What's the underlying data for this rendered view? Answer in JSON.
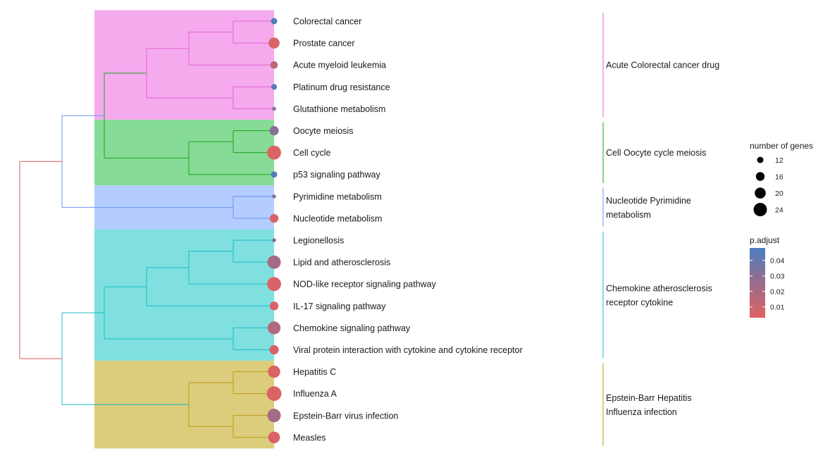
{
  "chart_data": {
    "type": "treeplot",
    "terms": [
      {
        "name": "Colorectal cancer",
        "count": 12,
        "p_adjust": 0.045
      },
      {
        "name": "Prostate cancer",
        "count": 20,
        "p_adjust": 0.005
      },
      {
        "name": "Acute myeloid leukemia",
        "count": 14,
        "p_adjust": 0.015
      },
      {
        "name": "Platinum drug resistance",
        "count": 11,
        "p_adjust": 0.045
      },
      {
        "name": "Glutathione metabolism",
        "count": 8,
        "p_adjust": 0.033
      },
      {
        "name": "Oocyte meiosis",
        "count": 17,
        "p_adjust": 0.03
      },
      {
        "name": "Cell cycle",
        "count": 25,
        "p_adjust": 0.004
      },
      {
        "name": "p53 signaling pathway",
        "count": 12,
        "p_adjust": 0.045
      },
      {
        "name": "Pyrimidine metabolism",
        "count": 8,
        "p_adjust": 0.033
      },
      {
        "name": "Nucleotide metabolism",
        "count": 16,
        "p_adjust": 0.006
      },
      {
        "name": "Legionellosis",
        "count": 8,
        "p_adjust": 0.033
      },
      {
        "name": "Lipid and atherosclerosis",
        "count": 24,
        "p_adjust": 0.022
      },
      {
        "name": "NOD-like receptor signaling pathway",
        "count": 25,
        "p_adjust": 0.006
      },
      {
        "name": "IL-17 signaling pathway",
        "count": 16,
        "p_adjust": 0.006
      },
      {
        "name": "Chemokine signaling pathway",
        "count": 23,
        "p_adjust": 0.018
      },
      {
        "name": "Viral protein interaction with cytokine and cytokine receptor",
        "count": 17,
        "p_adjust": 0.006
      },
      {
        "name": "Hepatitis C",
        "count": 22,
        "p_adjust": 0.004
      },
      {
        "name": "Influenza A",
        "count": 26,
        "p_adjust": 0.004
      },
      {
        "name": "Epstein-Barr virus infection",
        "count": 24,
        "p_adjust": 0.022
      },
      {
        "name": "Measles",
        "count": 21,
        "p_adjust": 0.005
      }
    ],
    "clusters": [
      {
        "label_lines": [
          "Acute Colorectal cancer drug"
        ],
        "first": 0,
        "last": 4,
        "color": "#e263d0",
        "fill": "#f5aaee"
      },
      {
        "label_lines": [
          "Cell Oocyte cycle meiosis"
        ],
        "first": 5,
        "last": 7,
        "color": "#1ca41c",
        "fill": "#86dc96"
      },
      {
        "label_lines": [
          "Nucleotide Pyrimidine",
          "metabolism"
        ],
        "first": 8,
        "last": 9,
        "color": "#6b93f0",
        "fill": "#b4ccff"
      },
      {
        "label_lines": [
          "Chemokine atherosclerosis",
          "receptor cytokine"
        ],
        "first": 10,
        "last": 15,
        "color": "#17bcc4",
        "fill": "#80e0e0"
      },
      {
        "label_lines": [
          "Epstein-Barr Hepatitis",
          "Influenza infection"
        ],
        "first": 16,
        "last": 19,
        "color": "#b79a10",
        "fill": "#dccd7c"
      }
    ],
    "top_branch_colors": {
      "root": "#e05a5a",
      "right_subtree": "#17bcc4"
    },
    "size_legend": {
      "title": "number of genes",
      "values": [
        12,
        16,
        20,
        24
      ]
    },
    "color_legend": {
      "title": "p.adjust",
      "ticks": [
        "0.04",
        "0.03",
        "0.02",
        "0.01"
      ],
      "range": [
        0.003,
        0.048
      ],
      "high_color": "#4a7fbf",
      "low_color": "#e06262"
    }
  }
}
